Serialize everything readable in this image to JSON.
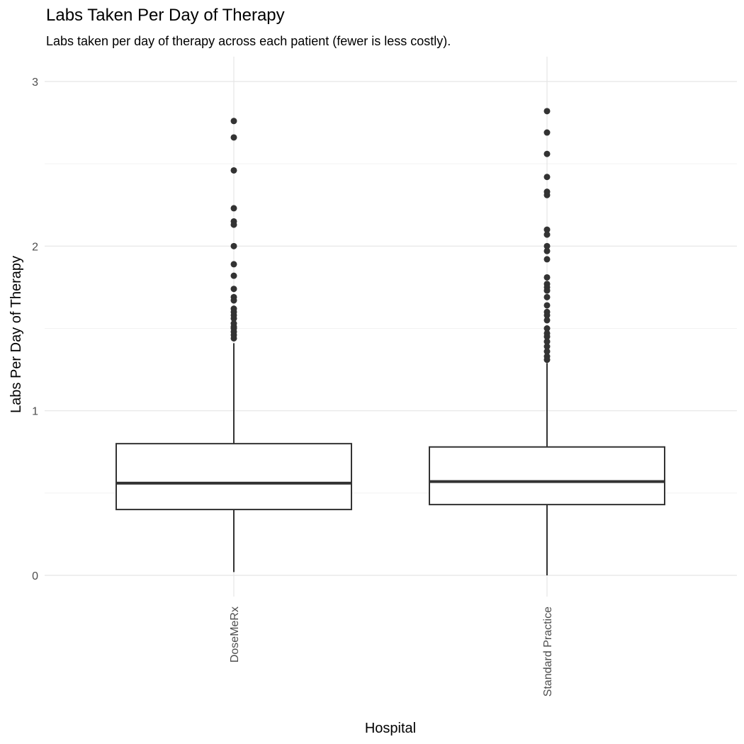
{
  "chart_data": {
    "type": "box",
    "title": "Labs Taken Per Day of Therapy",
    "subtitle": "Labs taken per day of therapy across each patient (fewer is less costly).",
    "xlabel": "Hospital",
    "ylabel": "Labs Per Day of Therapy",
    "ylim": [
      -0.13,
      3.16
    ],
    "yticks": [
      0,
      1,
      2,
      3
    ],
    "y_minor_gridlines": [
      0.5,
      1.5,
      2.5
    ],
    "grid": true,
    "categories": [
      "DoseMeRx",
      "Standard Practice"
    ],
    "boxes": [
      {
        "category": "DoseMeRx",
        "whisker_low": 0.02,
        "q1": 0.4,
        "median": 0.56,
        "q3": 0.8,
        "whisker_high": 1.41,
        "outliers": [
          2.76,
          2.66,
          2.46,
          2.23,
          2.15,
          2.13,
          2.0,
          1.89,
          1.82,
          1.74,
          1.69,
          1.67,
          1.62,
          1.6,
          1.58,
          1.56,
          1.53,
          1.51,
          1.5,
          1.48,
          1.46,
          1.44
        ]
      },
      {
        "category": "Standard Practice",
        "whisker_low": 0.0,
        "q1": 0.43,
        "median": 0.57,
        "q3": 0.78,
        "whisker_high": 1.29,
        "outliers": [
          2.82,
          2.69,
          2.56,
          2.42,
          2.33,
          2.31,
          2.1,
          2.07,
          2.0,
          1.97,
          1.92,
          1.81,
          1.77,
          1.75,
          1.73,
          1.69,
          1.64,
          1.6,
          1.58,
          1.55,
          1.5,
          1.47,
          1.45,
          1.42,
          1.39,
          1.36,
          1.33,
          1.31
        ]
      }
    ],
    "colors": {
      "box_line": "#333333",
      "outlier": "#333333",
      "grid": "#e5e5e5",
      "axis_text": "#4d4d4d",
      "title_text": "#000000"
    }
  }
}
